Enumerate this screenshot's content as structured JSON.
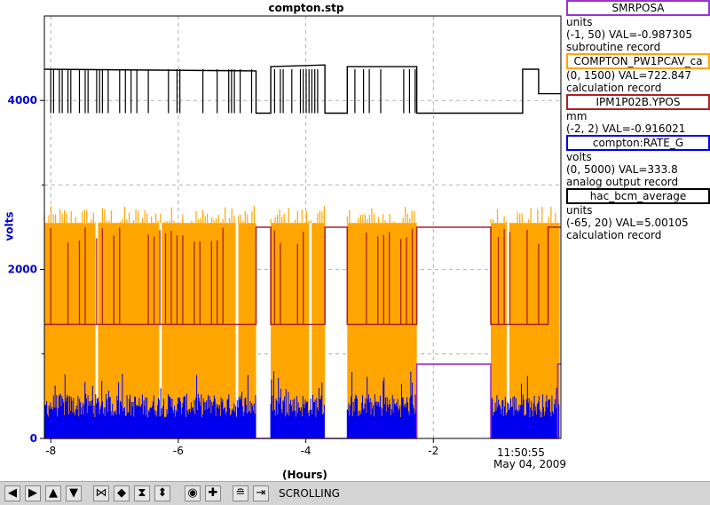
{
  "chart_data": {
    "type": "line",
    "title": "compton.stp",
    "ylabel": "volts",
    "xlabel": "(Hours)",
    "xlim": [
      -8.1,
      0.0
    ],
    "ylim": [
      0,
      5000
    ],
    "x_ticks": [
      -8,
      -6,
      -4,
      -2
    ],
    "y_ticks": [
      0,
      2000,
      4000
    ],
    "x_tick_labels": [
      "-8",
      "-6",
      "-4",
      "-2"
    ],
    "y_tick_labels": [
      "0",
      "2000",
      "4000"
    ],
    "grid": true,
    "end_time": "11:50:55",
    "end_date": "May 04, 2009",
    "off_segments": [
      [
        -4.78,
        -4.55
      ],
      [
        -3.7,
        -3.35
      ],
      [
        -2.26,
        -1.1
      ]
    ],
    "series": [
      {
        "name": "SMRPOSA",
        "color": "#9933cc",
        "points": [
          [
            -8.1,
            0
          ],
          [
            -2.26,
            0
          ],
          [
            -2.26,
            880
          ],
          [
            -1.1,
            880
          ],
          [
            -1.1,
            0
          ],
          [
            -0.05,
            0
          ],
          [
            -0.05,
            880
          ],
          [
            0,
            880
          ]
        ]
      },
      {
        "name": "COMPTON_PW1PCAV_ca",
        "color": "#ffa500",
        "band": [
          0,
          2550
        ],
        "peaks": [
          2450,
          2750
        ]
      },
      {
        "name": "IPM1P02B.YPOS",
        "color": "#aa2222",
        "baseline": 1350,
        "high": 2500,
        "points": [
          [
            -8.1,
            1350
          ],
          [
            -4.78,
            1350
          ],
          [
            -4.78,
            2500
          ],
          [
            -4.55,
            2500
          ],
          [
            -4.55,
            1350
          ],
          [
            -3.7,
            1350
          ],
          [
            -3.7,
            2500
          ],
          [
            -3.35,
            2500
          ],
          [
            -3.35,
            1350
          ],
          [
            -2.26,
            1350
          ],
          [
            -2.26,
            2500
          ],
          [
            -1.1,
            2500
          ],
          [
            -1.1,
            1350
          ],
          [
            -0.2,
            1350
          ],
          [
            -0.2,
            2500
          ],
          [
            0,
            2500
          ]
        ]
      },
      {
        "name": "compton:RATE_G",
        "color": "#0000ee",
        "band": [
          0,
          500
        ]
      },
      {
        "name": "hac_bcm_average",
        "color": "#000000",
        "high": 4370,
        "low": 3850,
        "points": [
          [
            -8.1,
            4370
          ],
          [
            -4.78,
            4350
          ],
          [
            -4.78,
            3850
          ],
          [
            -4.55,
            3850
          ],
          [
            -4.55,
            4400
          ],
          [
            -3.7,
            4420
          ],
          [
            -3.7,
            3850
          ],
          [
            -3.35,
            3850
          ],
          [
            -3.35,
            4400
          ],
          [
            -2.26,
            4400
          ],
          [
            -2.26,
            3850
          ],
          [
            -0.6,
            3850
          ],
          [
            -0.6,
            4370
          ],
          [
            -0.35,
            4370
          ],
          [
            -0.35,
            4080
          ],
          [
            0,
            4080
          ]
        ]
      }
    ]
  },
  "legend": [
    {
      "name": "SMRPOSA",
      "units": "units",
      "range_val": "(-1, 50) VAL=-0.987305",
      "record": "subroutine record",
      "color": "#9933cc",
      "fill": "#ffffff"
    },
    {
      "name": "COMPTON_PW1PCAV_ca",
      "units": "",
      "range_val": "(0, 1500) VAL=722.847",
      "record": "calculation record",
      "color": "#ffa500",
      "fill": "#ffffff"
    },
    {
      "name": "IPM1P02B.YPOS",
      "units": "mm",
      "range_val": "(-2, 2) VAL=-0.916021",
      "record": "",
      "color": "#aa2222",
      "fill": "#ffffff"
    },
    {
      "name": "compton:RATE_G",
      "units": "volts",
      "range_val": "(0, 5000) VAL=333.8",
      "record": "analog output record",
      "color": "#0000ee",
      "fill": "#ffffff"
    },
    {
      "name": "hac_bcm_average",
      "units": "units",
      "range_val": "(-65, 20) VAL=5.00105",
      "record": "calculation record",
      "color": "#000000",
      "fill": "#ffffff"
    }
  ],
  "toolbar": {
    "status": "SCROLLING",
    "buttons": [
      {
        "icon": "left-arrow-icon",
        "glyph": "◀"
      },
      {
        "icon": "right-arrow-icon",
        "glyph": "▶"
      },
      {
        "icon": "up-arrow-icon",
        "glyph": "▲"
      },
      {
        "icon": "down-arrow-icon",
        "glyph": "▼"
      },
      {
        "icon": "zoom-in-horizontal-icon",
        "glyph": "⋈"
      },
      {
        "icon": "zoom-out-horizontal-icon",
        "glyph": "◆"
      },
      {
        "icon": "zoom-in-vertical-icon",
        "glyph": "⧗"
      },
      {
        "icon": "zoom-out-vertical-icon",
        "glyph": "⬍"
      },
      {
        "icon": "auto-scale-icon",
        "glyph": "◉"
      },
      {
        "icon": "reset-icon",
        "glyph": "✚"
      },
      {
        "icon": "config-icon",
        "glyph": "≘"
      },
      {
        "icon": "scroll-toggle-icon",
        "glyph": "⇥"
      }
    ]
  }
}
